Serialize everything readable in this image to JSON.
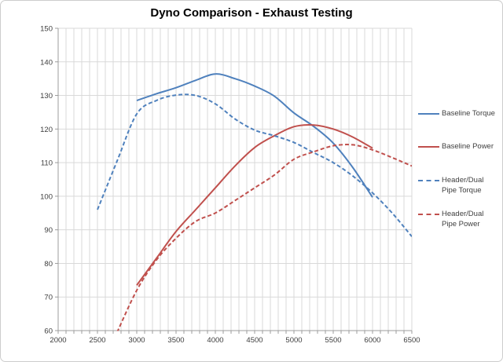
{
  "chart_data": {
    "type": "line",
    "title": "Dyno Comparison - Exhaust Testing",
    "xlabel": "",
    "ylabel": "",
    "xlim": [
      2000,
      6500
    ],
    "ylim": [
      60,
      150
    ],
    "x_tick_labels": [
      "2000",
      "2500",
      "3000",
      "3500",
      "4000",
      "4500",
      "5000",
      "5500",
      "6000",
      "6500"
    ],
    "x_tick_values": [
      2000,
      2500,
      3000,
      3500,
      4000,
      4500,
      5000,
      5500,
      6000,
      6500
    ],
    "x_minor_step": 100,
    "y_tick_labels": [
      "60",
      "70",
      "80",
      "90",
      "100",
      "110",
      "120",
      "130",
      "140",
      "150"
    ],
    "y_tick_values": [
      60,
      70,
      80,
      90,
      100,
      110,
      120,
      130,
      140,
      150
    ],
    "grid": true,
    "legend_position": "right",
    "grid_color": "#d9d9d9",
    "axis_color": "#9c9c9c",
    "label_color": "#3d3d3d",
    "series": [
      {
        "name": "Baseline Torque",
        "color": "#4f81bd",
        "dash": "solid",
        "x": [
          3000,
          3250,
          3500,
          3750,
          4000,
          4250,
          4500,
          4750,
          5000,
          5250,
          5500,
          5750,
          6000
        ],
        "values": [
          128.5,
          130.5,
          132.3,
          134.5,
          136.4,
          135.0,
          132.8,
          129.8,
          124.8,
          120.8,
          115.8,
          108.5,
          99.7
        ]
      },
      {
        "name": "Baseline Power",
        "color": "#c0504d",
        "dash": "solid",
        "x": [
          3000,
          3250,
          3500,
          3750,
          4000,
          4250,
          4500,
          4750,
          5000,
          5250,
          5500,
          5750,
          6000
        ],
        "values": [
          73.5,
          81.5,
          89.5,
          96.0,
          102.5,
          109.0,
          114.5,
          118.0,
          120.7,
          121.2,
          120.0,
          117.6,
          114.3
        ]
      },
      {
        "name": "Header/Dual Pipe Torque",
        "color": "#4f81bd",
        "dash": "dashed",
        "x": [
          2500,
          2750,
          3000,
          3250,
          3500,
          3750,
          4000,
          4250,
          4500,
          4750,
          5000,
          5250,
          5500,
          5750,
          6000,
          6250,
          6500
        ],
        "values": [
          96.0,
          110.5,
          124.5,
          128.5,
          130.1,
          130.0,
          127.5,
          123.0,
          119.7,
          118.0,
          116.0,
          113.0,
          110.0,
          106.0,
          101.0,
          95.0,
          88.0
        ]
      },
      {
        "name": "Header/Dual Pipe Power",
        "color": "#c0504d",
        "dash": "dashed",
        "x": [
          2750,
          3000,
          3250,
          3500,
          3750,
          4000,
          4250,
          4500,
          4750,
          5000,
          5250,
          5500,
          5750,
          6000,
          6250,
          6500
        ],
        "values": [
          59.5,
          72.0,
          81.0,
          87.5,
          92.5,
          95.0,
          98.7,
          102.5,
          106.3,
          111.0,
          113.2,
          115.0,
          115.3,
          113.8,
          111.5,
          109.0
        ]
      }
    ]
  }
}
